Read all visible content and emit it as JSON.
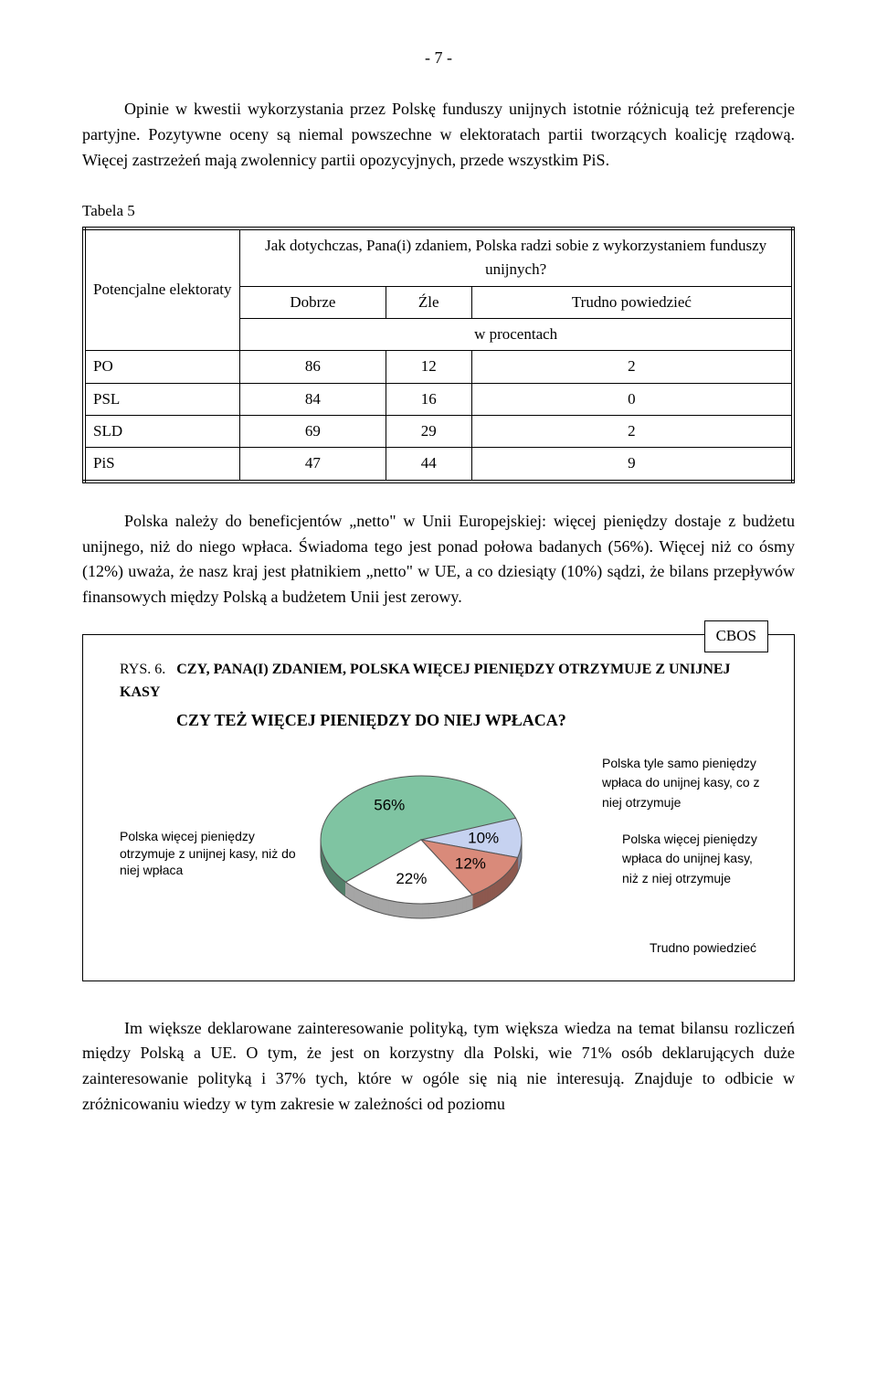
{
  "page_number": "- 7 -",
  "para1": "Opinie w kwestii wykorzystania przez Polskę funduszy unijnych istotnie różnicują też preferencje partyjne. Pozytywne oceny są niemal powszechne w elektoratach partii tworzących koalicję rządową. Więcej zastrzeżeń mają zwolennicy partii opozycyjnych, przede wszystkim PiS.",
  "table5": {
    "label": "Tabela 5",
    "row_header": "Potencjalne elektoraty",
    "question": "Jak dotychczas, Pana(i) zdaniem, Polska radzi sobie z wykorzystaniem funduszy unijnych?",
    "col1": "Dobrze",
    "col2": "Źle",
    "col3": "Trudno powiedzieć",
    "units": "w procentach",
    "rows": [
      {
        "name": "PO",
        "a": "86",
        "b": "12",
        "c": "2"
      },
      {
        "name": "PSL",
        "a": "84",
        "b": "16",
        "c": "0"
      },
      {
        "name": "SLD",
        "a": "69",
        "b": "29",
        "c": "2"
      },
      {
        "name": "PiS",
        "a": "47",
        "b": "44",
        "c": "9"
      }
    ]
  },
  "para2": "Polska należy do beneficjentów „netto\" w Unii Europejskiej: więcej pieniędzy dostaje z budżetu unijnego, niż do niego wpłaca. Świadoma tego jest ponad połowa badanych (56%). Więcej niż co ósmy (12%) uważa, że nasz kraj jest płatnikiem „netto\" w UE, a co dziesiąty (10%) sądzi, że bilans przepływów finansowych między Polską a budżetem Unii jest zerowy.",
  "chart": {
    "cbos": "CBOS",
    "rys": "RYS. 6.",
    "title_l1": "CZY, PANA(I) ZDANIEM, POLSKA WIĘCEJ PIENIĘDZY OTRZYMUJE Z UNIJNEJ KASY",
    "title_l2": "CZY TEŻ WIĘCEJ PIENIĘDZY DO NIEJ WPŁACA?",
    "left_label": "Polska więcej pieniędzy otrzymuje z unijnej kasy, niż do niej wpłaca",
    "top_label": "Polska tyle samo pieniędzy wpłaca do unijnej kasy, co z niej otrzymuje",
    "mid_label": "Polska więcej pieniędzy wpłaca do unijnej kasy, niż z niej otrzymuje",
    "bot_label": "Trudno powiedzieć",
    "slices": [
      {
        "value": 56,
        "color": "#7fc4a2",
        "label": "56%"
      },
      {
        "value": 10,
        "color": "#c6d2f0",
        "label": "10%"
      },
      {
        "value": 12,
        "color": "#d98a7a",
        "label": "12%"
      },
      {
        "value": 22,
        "color": "#ffffff",
        "label": "22%"
      }
    ],
    "pie_stroke": "#555555",
    "shadow": "#7a9788"
  },
  "para3": "Im większe deklarowane zainteresowanie polityką, tym większa wiedza na temat bilansu rozliczeń między Polską a UE. O tym, że jest on korzystny dla Polski, wie 71% osób deklarujących duże zainteresowanie polityką i 37% tych, które w ogóle się nią nie interesują. Znajduje to odbicie w zróżnicowaniu wiedzy w tym zakresie w zależności od poziomu"
}
